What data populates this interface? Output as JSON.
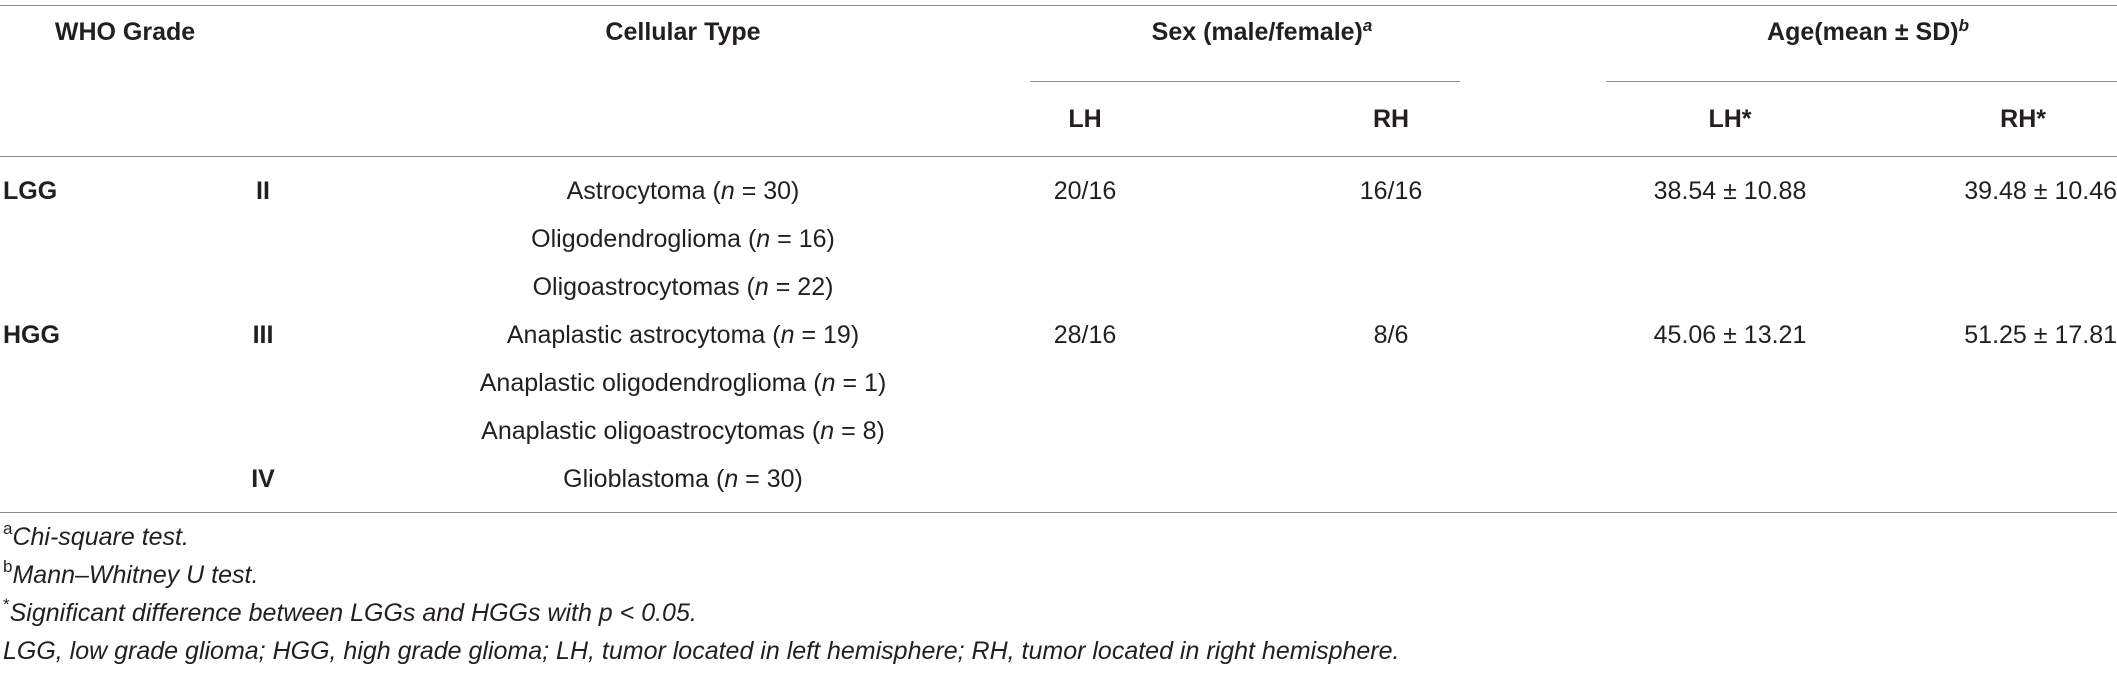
{
  "headers": {
    "who_grade": "WHO Grade",
    "cellular_type": "Cellular Type",
    "sex": "Sex (male/female)",
    "sex_mark": "a",
    "age": "Age(mean ± SD)",
    "age_mark": "b",
    "sub": [
      "LH",
      "RH",
      "LH*",
      "RH*"
    ]
  },
  "rows": [
    {
      "group": "LGG",
      "grade": "II",
      "type": "Astrocytoma",
      "n": "30",
      "sex_lh": "20/16",
      "sex_rh": "16/16",
      "age_lh": "38.54 ± 10.88",
      "age_rh": "39.48 ± 10.46"
    },
    {
      "group": "",
      "grade": "",
      "type": "Oligodendroglioma",
      "n": "16",
      "sex_lh": "",
      "sex_rh": "",
      "age_lh": "",
      "age_rh": ""
    },
    {
      "group": "",
      "grade": "",
      "type": "Oligoastrocytomas",
      "n": "22",
      "sex_lh": "",
      "sex_rh": "",
      "age_lh": "",
      "age_rh": ""
    },
    {
      "group": "HGG",
      "grade": "III",
      "type": "Anaplastic astrocytoma",
      "n": "19",
      "sex_lh": "28/16",
      "sex_rh": "8/6",
      "age_lh": "45.06 ± 13.21",
      "age_rh": "51.25 ± 17.81"
    },
    {
      "group": "",
      "grade": "",
      "type": "Anaplastic oligodendroglioma",
      "n": "1",
      "sex_lh": "",
      "sex_rh": "",
      "age_lh": "",
      "age_rh": ""
    },
    {
      "group": "",
      "grade": "",
      "type": "Anaplastic oligoastrocytomas",
      "n": "8",
      "sex_lh": "",
      "sex_rh": "",
      "age_lh": "",
      "age_rh": ""
    },
    {
      "group": "",
      "grade": "IV",
      "type": "Glioblastoma",
      "n": "30",
      "sex_lh": "",
      "sex_rh": "",
      "age_lh": "",
      "age_rh": ""
    }
  ],
  "n_symbol": "n",
  "n_eq": " = ",
  "footnotes": {
    "a_mark": "a",
    "a_text": "Chi-square test.",
    "b_mark": "b",
    "b_text": "Mann–Whitney U test.",
    "star_mark": "*",
    "star_text": "Significant difference between LGGs and HGGs with p < 0.05.",
    "abbrev": "LGG, low grade glioma; HGG, high grade glioma; LH, tumor located in left hemisphere; RH, tumor located in right hemisphere."
  }
}
